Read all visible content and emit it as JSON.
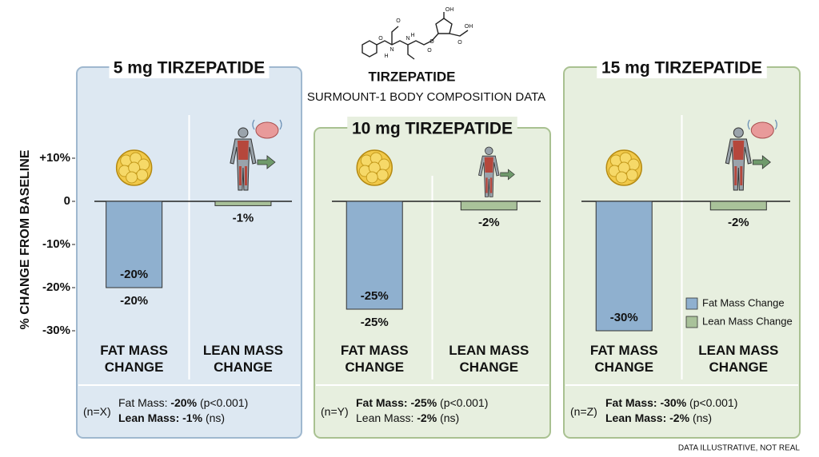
{
  "title": "TIRZEPATIDE",
  "subtitle": "SURMOUNT-1 BODY COMPOSITION DATA",
  "y_label": "% CHANGE FROM BASELINE",
  "footnote": "DATA ILLUSTRATIVE, NOT REAL",
  "structure_labels": [
    "OH",
    "O",
    "OH",
    "O",
    "O",
    "N",
    "H",
    "N",
    "H",
    "O",
    "O"
  ],
  "chart_data": [
    {
      "type": "bar",
      "title": "5 mg TIRZEPATIDE",
      "categories": [
        "FAT MASS CHANGE",
        "LEAN MASS CHANGE"
      ],
      "values": [
        -20,
        -1
      ],
      "value_labels": [
        "-20%",
        "-1%"
      ],
      "label_position": [
        [
          "inside",
          "below"
        ],
        [
          "below"
        ]
      ],
      "colors": [
        "#8fb0cf",
        "#a9c29a"
      ],
      "ylim": [
        -32,
        12
      ],
      "yticks": [
        {
          "value": 10,
          "label": "+10%"
        },
        0,
        {
          "value": -10,
          "label": "-10%"
        },
        {
          "value": -20,
          "label": "-20%"
        },
        {
          "value": -30,
          "label": "-30%"
        }
      ],
      "footer": {
        "n": "(n=X)",
        "lines": [
          {
            "label": "Fat Mass:",
            "value": "-20%",
            "note": "(p<0.001)",
            "bold_label": false
          },
          {
            "label": "Lean Mass:",
            "value": "-1%",
            "note": "(ns)",
            "bold_label": true
          }
        ]
      }
    },
    {
      "type": "bar",
      "title": "10 mg TIRZEPATIDE",
      "categories": [
        "FAT MASS CHANGE",
        "LEAN MASS CHANGE"
      ],
      "values": [
        -25,
        -2
      ],
      "value_labels": [
        "-25%",
        "-2%"
      ],
      "label_position": [
        [
          "inside",
          "below"
        ],
        [
          "below"
        ]
      ],
      "colors": [
        "#8fb0cf",
        "#a9c29a"
      ],
      "ylim": [
        -32,
        12
      ],
      "footer": {
        "n": "(n=Y)",
        "lines": [
          {
            "label": "Fat Mass:",
            "value": "-25%",
            "note": "(p<0.001)",
            "bold_label": true
          },
          {
            "label": "Lean Mass:",
            "value": "-2%",
            "note": "(ns)",
            "bold_label": false
          }
        ]
      }
    },
    {
      "type": "bar",
      "title": "15 mg TIRZEPATIDE",
      "categories": [
        "FAT MASS CHANGE",
        "LEAN MASS CHANGE"
      ],
      "values": [
        -30,
        -2
      ],
      "value_labels": [
        "-30%",
        "-2%"
      ],
      "label_position": [
        [
          "inside"
        ],
        [
          "below"
        ]
      ],
      "colors": [
        "#8fb0cf",
        "#a9c29a"
      ],
      "ylim": [
        -32,
        12
      ],
      "legend": [
        "Fat Mass Change",
        "Lean Mass Change"
      ],
      "legend_position": "lower right",
      "footer": {
        "n": "(n=Z)",
        "lines": [
          {
            "label": "Fat Mass:",
            "value": "-30%",
            "note": "(p<0.001)",
            "bold_label": true
          },
          {
            "label": "Lean Mass:",
            "value": "-2%",
            "note": "(ns)",
            "bold_label": true
          }
        ]
      }
    }
  ]
}
